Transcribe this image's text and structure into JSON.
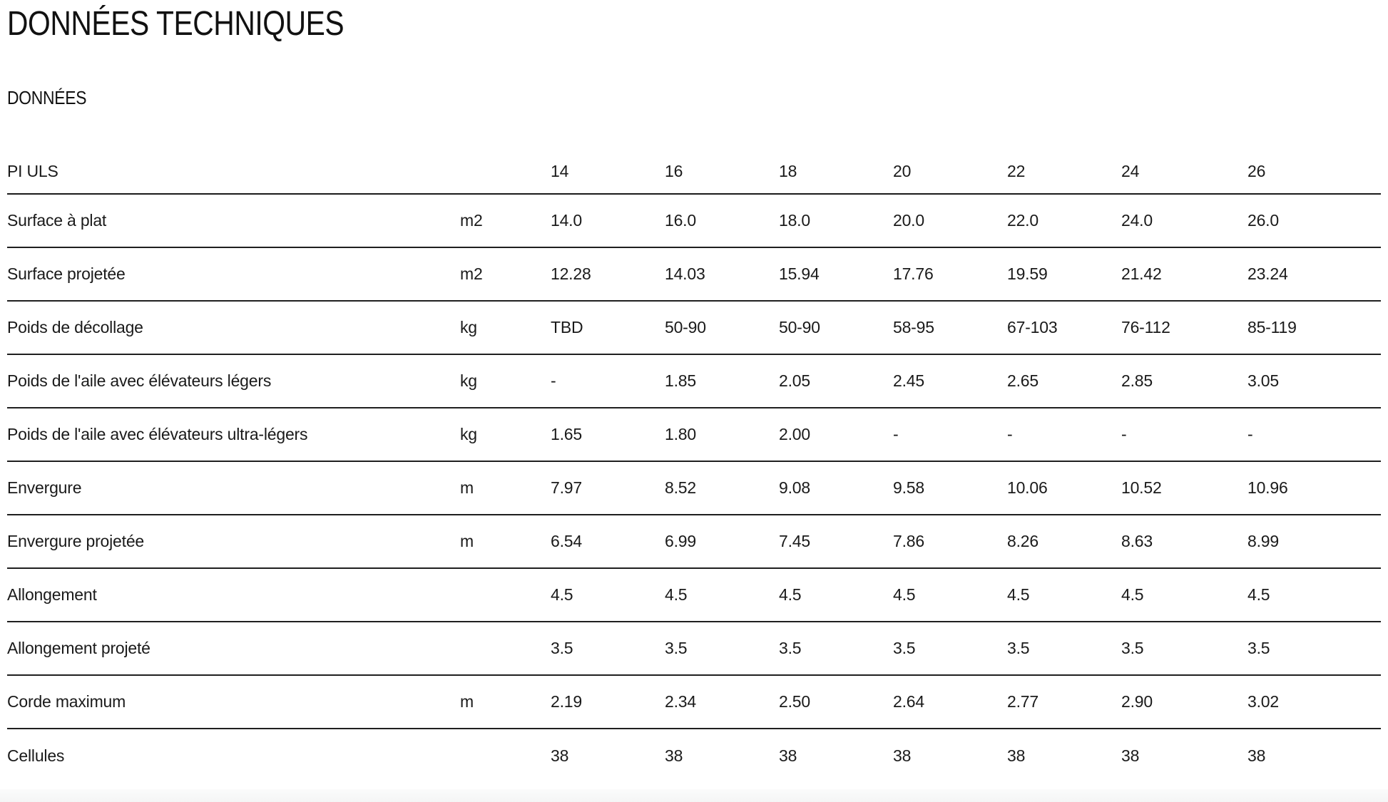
{
  "page": {
    "title": "DONNÉES TECHNIQUES",
    "subtitle": "DONNÉES"
  },
  "table": {
    "model_label": "PI ULS",
    "sizes": [
      "14",
      "16",
      "18",
      "20",
      "22",
      "24",
      "26"
    ],
    "rows": [
      {
        "label": "Surface à plat",
        "unit": "m2",
        "values": [
          "14.0",
          "16.0",
          "18.0",
          "20.0",
          "22.0",
          "24.0",
          "26.0"
        ]
      },
      {
        "label": "Surface projetée",
        "unit": "m2",
        "values": [
          "12.28",
          "14.03",
          "15.94",
          "17.76",
          "19.59",
          "21.42",
          "23.24"
        ]
      },
      {
        "label": "Poids de décollage",
        "unit": "kg",
        "values": [
          "TBD",
          "50-90",
          "50-90",
          "58-95",
          "67-103",
          "76-112",
          "85-119"
        ]
      },
      {
        "label": "Poids de l'aile avec élévateurs légers",
        "unit": "kg",
        "values": [
          "-",
          "1.85",
          "2.05",
          "2.45",
          "2.65",
          "2.85",
          "3.05"
        ]
      },
      {
        "label": "Poids de l'aile avec élévateurs ultra-légers",
        "unit": "kg",
        "values": [
          "1.65",
          "1.80",
          "2.00",
          "-",
          "-",
          "-",
          "-"
        ]
      },
      {
        "label": "Envergure",
        "unit": "m",
        "values": [
          "7.97",
          "8.52",
          "9.08",
          "9.58",
          "10.06",
          "10.52",
          "10.96"
        ]
      },
      {
        "label": "Envergure projetée",
        "unit": "m",
        "values": [
          "6.54",
          "6.99",
          "7.45",
          "7.86",
          "8.26",
          "8.63",
          "8.99"
        ]
      },
      {
        "label": "Allongement",
        "unit": "",
        "values": [
          "4.5",
          "4.5",
          "4.5",
          "4.5",
          "4.5",
          "4.5",
          "4.5"
        ]
      },
      {
        "label": "Allongement projeté",
        "unit": "",
        "values": [
          "3.5",
          "3.5",
          "3.5",
          "3.5",
          "3.5",
          "3.5",
          "3.5"
        ]
      },
      {
        "label": "Corde maximum",
        "unit": "m",
        "values": [
          "2.19",
          "2.34",
          "2.50",
          "2.64",
          "2.77",
          "2.90",
          "3.02"
        ]
      },
      {
        "label": "Cellules",
        "unit": "",
        "values": [
          "38",
          "38",
          "38",
          "38",
          "38",
          "38",
          "38"
        ]
      }
    ]
  }
}
